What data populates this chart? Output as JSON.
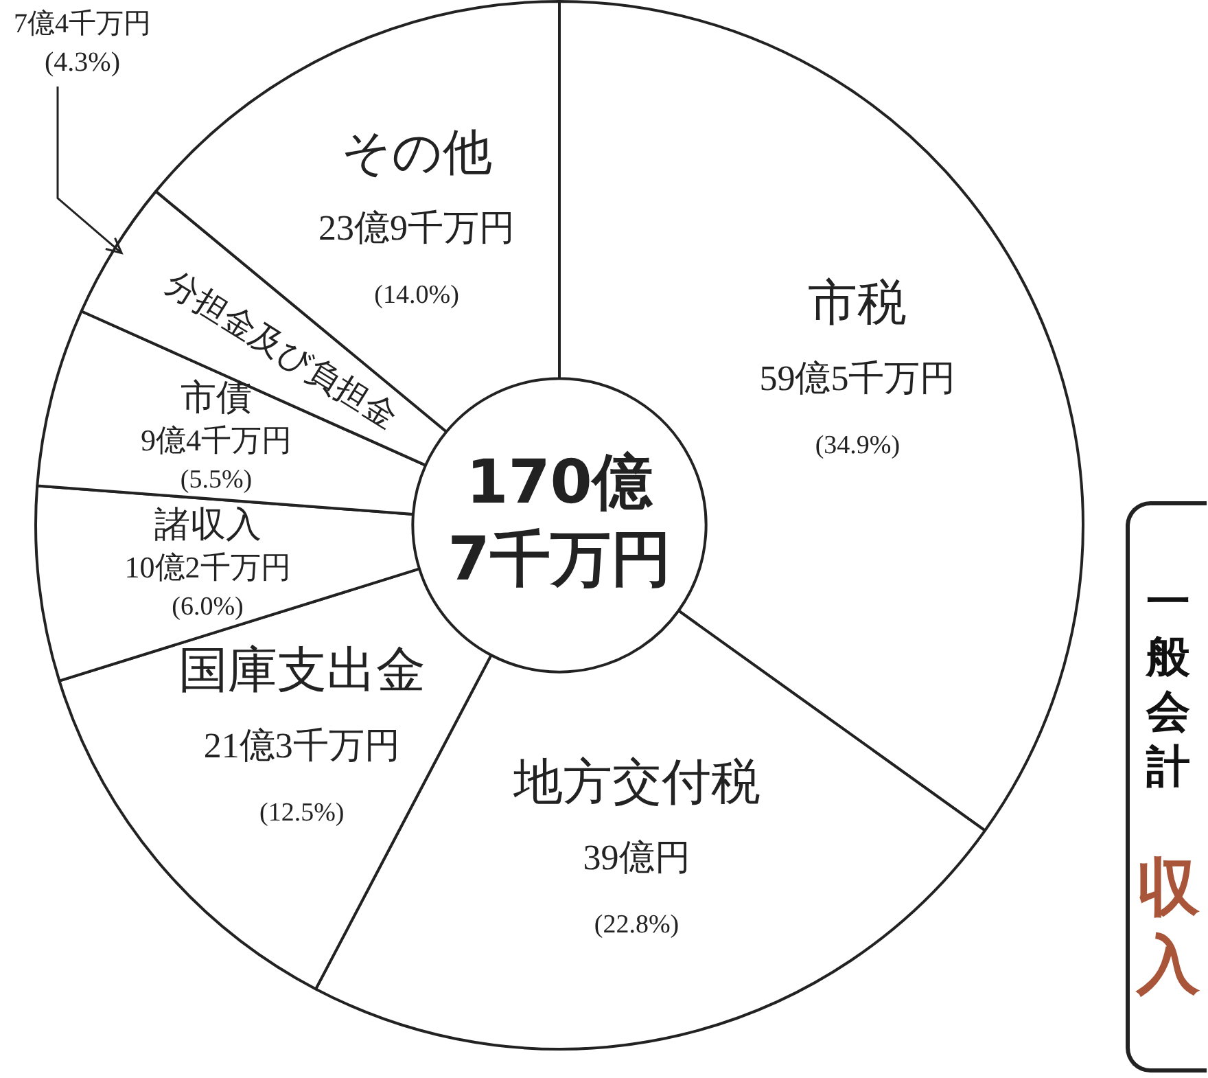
{
  "chart_data": {
    "type": "donut",
    "title": "一般会計",
    "subtitle": "収入",
    "categories": [
      "市税",
      "地方交付税",
      "国庫支出金",
      "諸収入",
      "市債",
      "分担金及び負担金",
      "その他"
    ],
    "values": [
      34.9,
      22.8,
      12.5,
      6.0,
      5.5,
      4.3,
      14.0
    ],
    "colors": [
      "#ffffff",
      "#ffffff",
      "#ffffff",
      "#ffffff",
      "#ffffff",
      "#ffffff",
      "#ffffff"
    ],
    "value_labels": [
      "59億5千万円 (34.9%)",
      "39億円 (22.8%)",
      "21億3千万円 (12.5%)",
      "10億2千万円 (6.0%)",
      "9億4千万円 (5.5%)",
      "7億4千万円 (4.3%)",
      "23億9千万円 (14.0%)"
    ],
    "annotations": [
      "170億 7千万円"
    ],
    "legend": false
  }
}
